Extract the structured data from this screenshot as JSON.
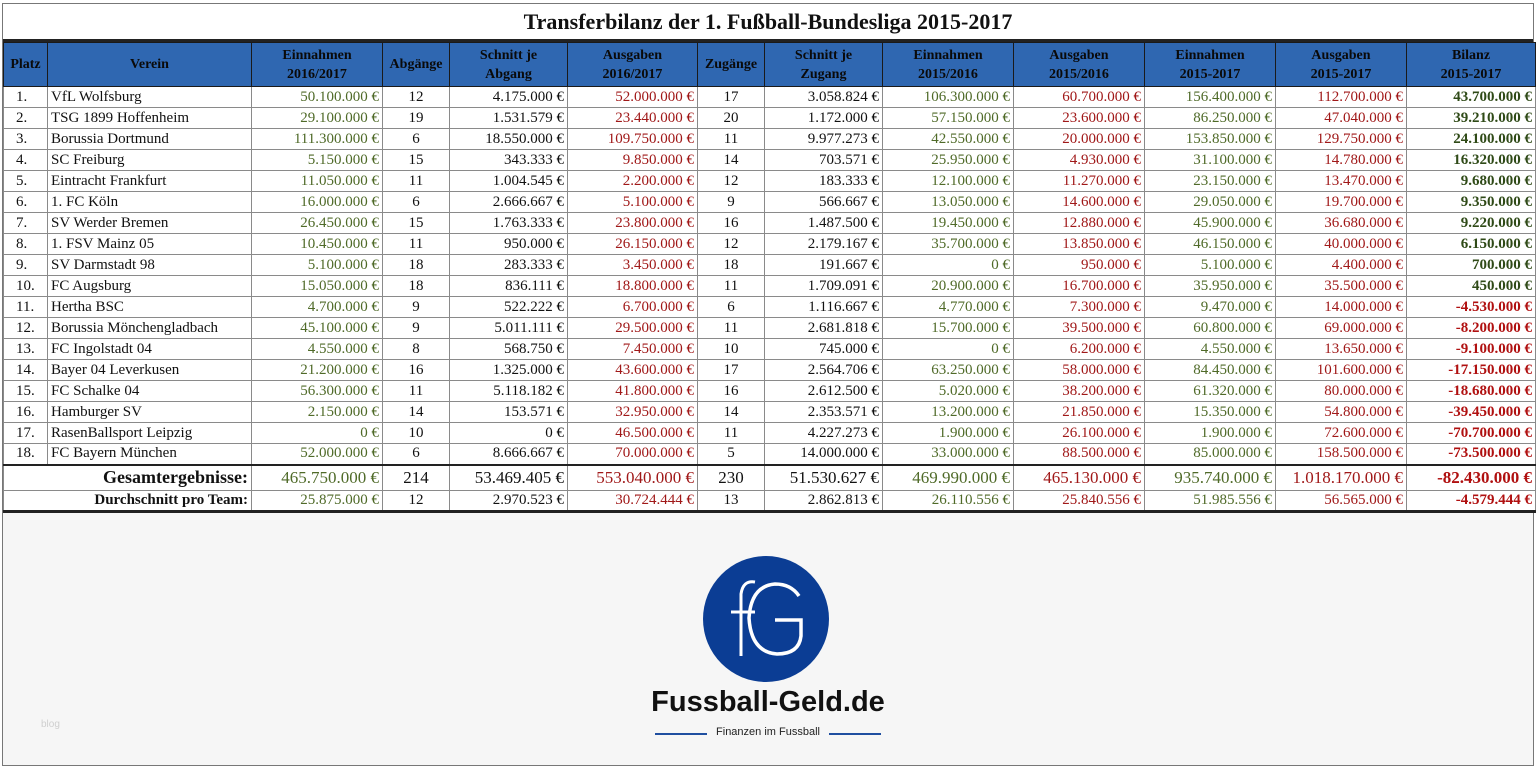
{
  "title": "Transferbilanz der 1. Fußball-Bundesliga 2015-2017",
  "headers": {
    "platz": "Platz",
    "verein": "Verein",
    "einnahmen1617": [
      "Einnahmen",
      "2016/2017"
    ],
    "abgaenge": "Abgänge",
    "schnitt_abgang": [
      "Schnitt je",
      "Abgang"
    ],
    "ausgaben1617": [
      "Ausgaben",
      "2016/2017"
    ],
    "zugaenge": "Zugänge",
    "schnitt_zugang": [
      "Schnitt je",
      "Zugang"
    ],
    "einnahmen1516": [
      "Einnahmen",
      "2015/2016"
    ],
    "ausgaben1516": [
      "Ausgaben",
      "2015/2016"
    ],
    "einnahmen1517": [
      "Einnahmen",
      "2015-2017"
    ],
    "ausgaben1517": [
      "Ausgaben",
      "2015-2017"
    ],
    "bilanz": [
      "Bilanz",
      "2015-2017"
    ]
  },
  "rows": [
    [
      "1.",
      "VfL Wolfsburg",
      "50.100.000 €",
      "12",
      "4.175.000 €",
      "52.000.000 €",
      "17",
      "3.058.824 €",
      "106.300.000 €",
      "60.700.000 €",
      "156.400.000 €",
      "112.700.000 €",
      "43.700.000 €"
    ],
    [
      "2.",
      "TSG 1899 Hoffenheim",
      "29.100.000 €",
      "19",
      "1.531.579 €",
      "23.440.000 €",
      "20",
      "1.172.000 €",
      "57.150.000 €",
      "23.600.000 €",
      "86.250.000 €",
      "47.040.000 €",
      "39.210.000 €"
    ],
    [
      "3.",
      "Borussia Dortmund",
      "111.300.000 €",
      "6",
      "18.550.000 €",
      "109.750.000 €",
      "11",
      "9.977.273 €",
      "42.550.000 €",
      "20.000.000 €",
      "153.850.000 €",
      "129.750.000 €",
      "24.100.000 €"
    ],
    [
      "4.",
      "SC Freiburg",
      "5.150.000 €",
      "15",
      "343.333 €",
      "9.850.000 €",
      "14",
      "703.571 €",
      "25.950.000 €",
      "4.930.000 €",
      "31.100.000 €",
      "14.780.000 €",
      "16.320.000 €"
    ],
    [
      "5.",
      "Eintracht Frankfurt",
      "11.050.000 €",
      "11",
      "1.004.545 €",
      "2.200.000 €",
      "12",
      "183.333 €",
      "12.100.000 €",
      "11.270.000 €",
      "23.150.000 €",
      "13.470.000 €",
      "9.680.000 €"
    ],
    [
      "6.",
      "1. FC Köln",
      "16.000.000 €",
      "6",
      "2.666.667 €",
      "5.100.000 €",
      "9",
      "566.667 €",
      "13.050.000 €",
      "14.600.000 €",
      "29.050.000 €",
      "19.700.000 €",
      "9.350.000 €"
    ],
    [
      "7.",
      "SV Werder Bremen",
      "26.450.000 €",
      "15",
      "1.763.333 €",
      "23.800.000 €",
      "16",
      "1.487.500 €",
      "19.450.000 €",
      "12.880.000 €",
      "45.900.000 €",
      "36.680.000 €",
      "9.220.000 €"
    ],
    [
      "8.",
      "1. FSV Mainz 05",
      "10.450.000 €",
      "11",
      "950.000 €",
      "26.150.000 €",
      "12",
      "2.179.167 €",
      "35.700.000 €",
      "13.850.000 €",
      "46.150.000 €",
      "40.000.000 €",
      "6.150.000 €"
    ],
    [
      "9.",
      "SV Darmstadt 98",
      "5.100.000 €",
      "18",
      "283.333 €",
      "3.450.000 €",
      "18",
      "191.667 €",
      "0 €",
      "950.000 €",
      "5.100.000 €",
      "4.400.000 €",
      "700.000 €"
    ],
    [
      "10.",
      "FC Augsburg",
      "15.050.000 €",
      "18",
      "836.111 €",
      "18.800.000 €",
      "11",
      "1.709.091 €",
      "20.900.000 €",
      "16.700.000 €",
      "35.950.000 €",
      "35.500.000 €",
      "450.000 €"
    ],
    [
      "11.",
      "Hertha BSC",
      "4.700.000 €",
      "9",
      "522.222 €",
      "6.700.000 €",
      "6",
      "1.116.667 €",
      "4.770.000 €",
      "7.300.000 €",
      "9.470.000 €",
      "14.000.000 €",
      "-4.530.000 €"
    ],
    [
      "12.",
      "Borussia Mönchengladbach",
      "45.100.000 €",
      "9",
      "5.011.111 €",
      "29.500.000 €",
      "11",
      "2.681.818 €",
      "15.700.000 €",
      "39.500.000 €",
      "60.800.000 €",
      "69.000.000 €",
      "-8.200.000 €"
    ],
    [
      "13.",
      "FC Ingolstadt 04",
      "4.550.000 €",
      "8",
      "568.750 €",
      "7.450.000 €",
      "10",
      "745.000 €",
      "0 €",
      "6.200.000 €",
      "4.550.000 €",
      "13.650.000 €",
      "-9.100.000 €"
    ],
    [
      "14.",
      "Bayer 04 Leverkusen",
      "21.200.000 €",
      "16",
      "1.325.000 €",
      "43.600.000 €",
      "17",
      "2.564.706 €",
      "63.250.000 €",
      "58.000.000 €",
      "84.450.000 €",
      "101.600.000 €",
      "-17.150.000 €"
    ],
    [
      "15.",
      "FC Schalke 04",
      "56.300.000 €",
      "11",
      "5.118.182 €",
      "41.800.000 €",
      "16",
      "2.612.500 €",
      "5.020.000 €",
      "38.200.000 €",
      "61.320.000 €",
      "80.000.000 €",
      "-18.680.000 €"
    ],
    [
      "16.",
      "Hamburger SV",
      "2.150.000 €",
      "14",
      "153.571 €",
      "32.950.000 €",
      "14",
      "2.353.571 €",
      "13.200.000 €",
      "21.850.000 €",
      "15.350.000 €",
      "54.800.000 €",
      "-39.450.000 €"
    ],
    [
      "17.",
      "RasenBallsport Leipzig",
      "0 €",
      "10",
      "0 €",
      "46.500.000 €",
      "11",
      "4.227.273 €",
      "1.900.000 €",
      "26.100.000 €",
      "1.900.000 €",
      "72.600.000 €",
      "-70.700.000 €"
    ],
    [
      "18.",
      "FC Bayern München",
      "52.000.000 €",
      "6",
      "8.666.667 €",
      "70.000.000 €",
      "5",
      "14.000.000 €",
      "33.000.000 €",
      "88.500.000 €",
      "85.000.000 €",
      "158.500.000 €",
      "-73.500.000 €"
    ]
  ],
  "total": [
    "Gesamtergebnisse:",
    "465.750.000 €",
    "214",
    "53.469.405 €",
    "553.040.000 €",
    "230",
    "51.530.627 €",
    "469.990.000 €",
    "465.130.000 €",
    "935.740.000 €",
    "1.018.170.000 €",
    "-82.430.000 €"
  ],
  "average": [
    "Durchschnitt pro Team:",
    "25.875.000 €",
    "12",
    "2.970.523 €",
    "30.724.444 €",
    "13",
    "2.862.813 €",
    "26.110.556 €",
    "25.840.556 €",
    "51.985.556 €",
    "56.565.000 €",
    "-4.579.444 €"
  ],
  "logo": {
    "letters": "fG",
    "name": "Fussball-Geld.de",
    "tagline": "Finanzen im Fussball",
    "color": "#0b3d94"
  },
  "watermark": "blog"
}
